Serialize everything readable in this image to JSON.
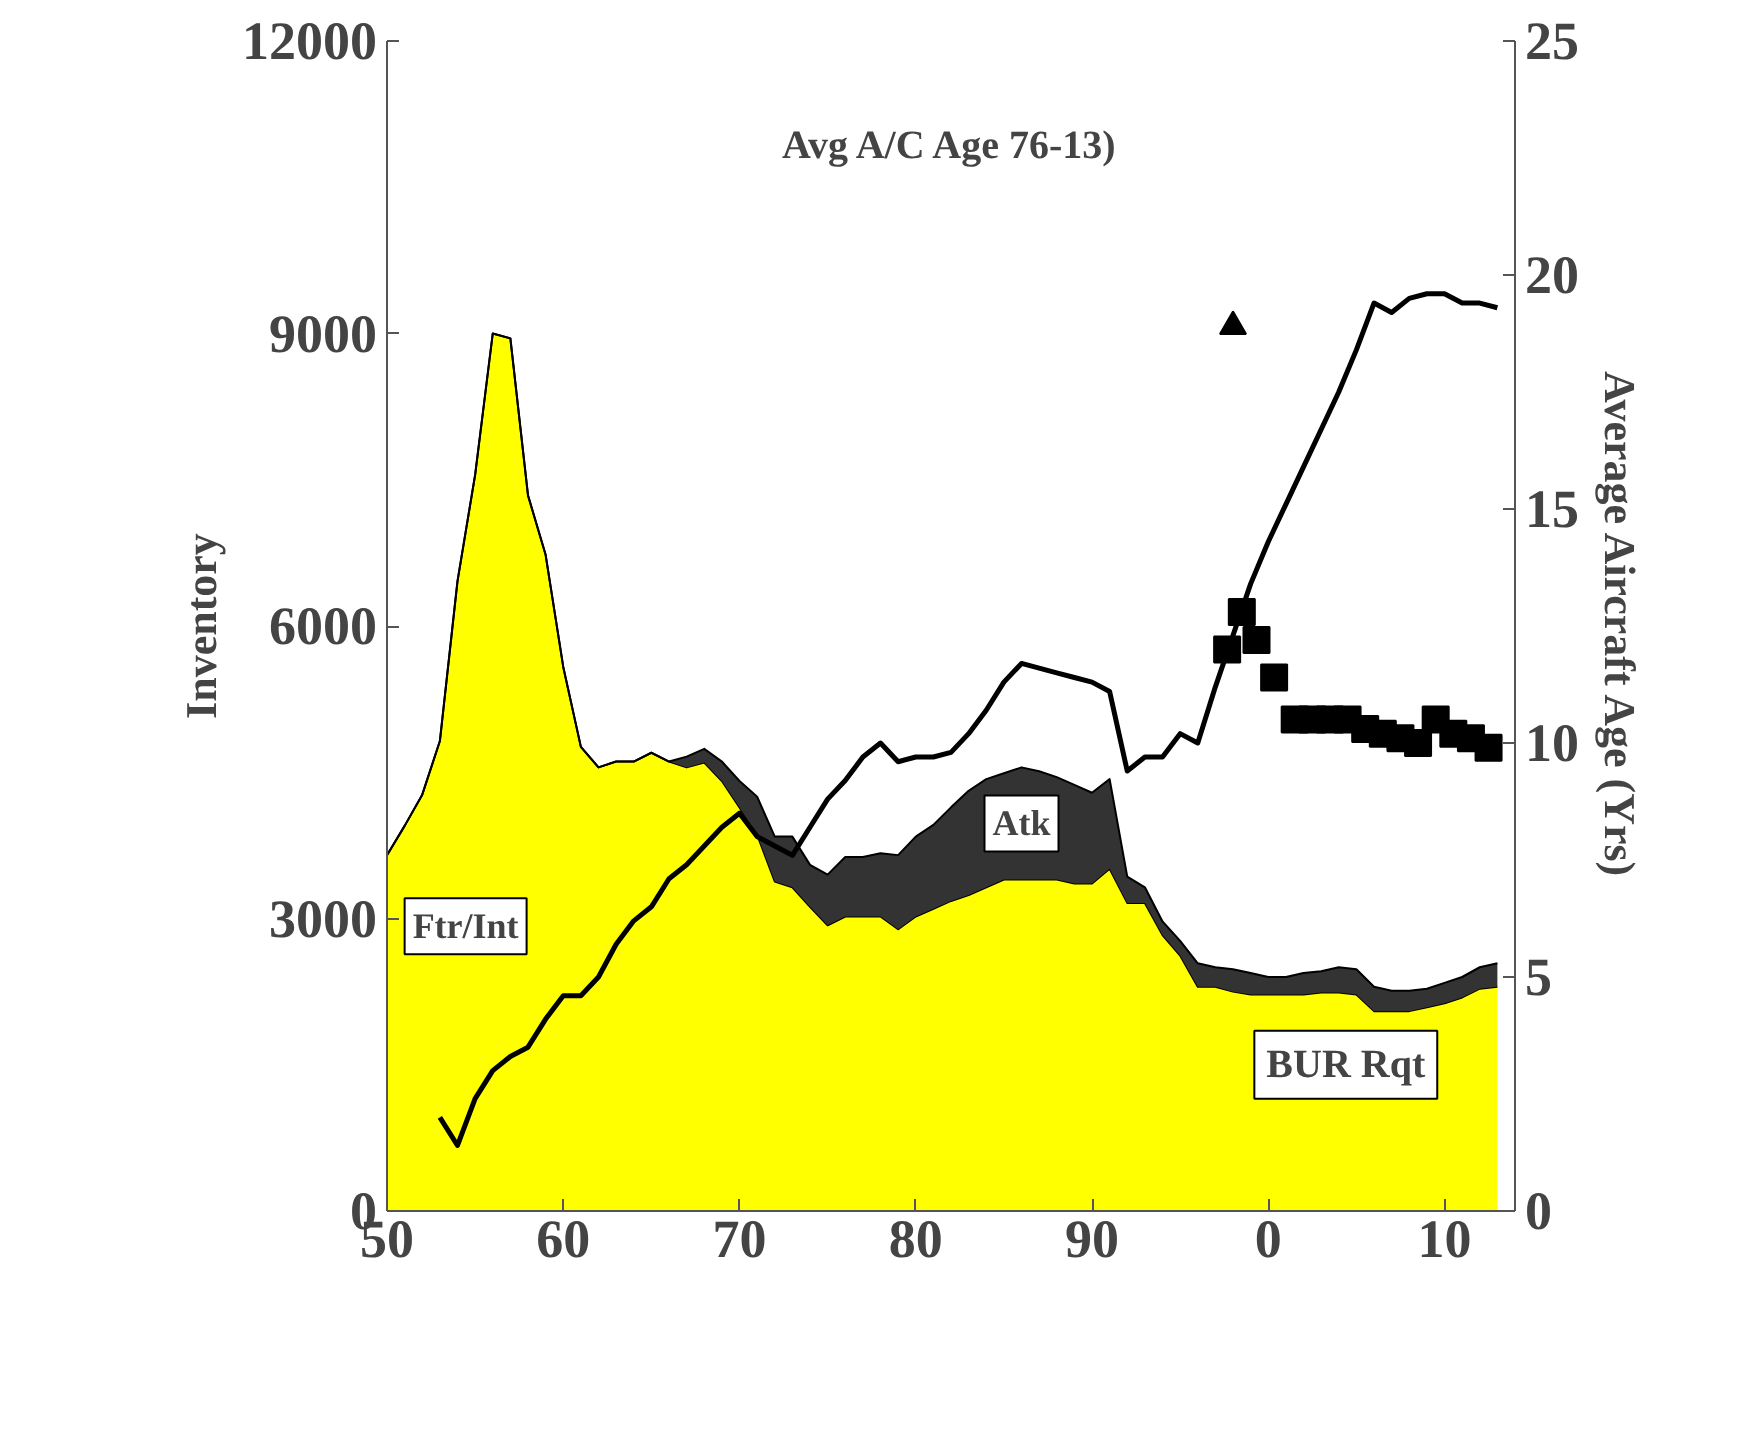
{
  "chart_data": {
    "type": "area",
    "stacked": true,
    "title": "Avg A/C Age 76-13)",
    "ylabel": "Inventory",
    "y2label": "Average Aircraft Age (Yrs)",
    "x": [
      "1950",
      "1951",
      "1952",
      "1953",
      "1954",
      "1955",
      "1956",
      "1957",
      "1958",
      "1959",
      "1960",
      "1961",
      "1962",
      "1963",
      "1964",
      "1965",
      "1966",
      "1967",
      "1968",
      "1969",
      "1970",
      "1971",
      "1972",
      "1973",
      "1974",
      "1975",
      "1976",
      "1977",
      "1978",
      "1979",
      "1980",
      "1981",
      "1982",
      "1983",
      "1984",
      "1985",
      "1986",
      "1987",
      "1988",
      "1989",
      "1990",
      "1991",
      "1992",
      "1993",
      "1994",
      "1995",
      "1996",
      "1997",
      "1998",
      "1999",
      "2000",
      "2001",
      "2002",
      "2003",
      "2004",
      "2005",
      "2006",
      "2007",
      "2008",
      "2009",
      "2010",
      "2011",
      "2012",
      "2013"
    ],
    "xlim": [
      "1950",
      "2014"
    ],
    "xticks": [
      {
        "value": "1950",
        "label": "50"
      },
      {
        "value": "1960",
        "label": "60"
      },
      {
        "value": "1970",
        "label": "70"
      },
      {
        "value": "1980",
        "label": "80"
      },
      {
        "value": "1990",
        "label": "90"
      },
      {
        "value": "2000",
        "label": "0"
      },
      {
        "value": "2010",
        "label": "10"
      }
    ],
    "ylim": [
      0,
      12000
    ],
    "yticks": [
      0,
      3000,
      6000,
      9000,
      12000
    ],
    "y2lim": [
      0,
      25
    ],
    "y2ticks": [
      0,
      5,
      10,
      15,
      20,
      25
    ],
    "grid": false,
    "series": [
      {
        "name": "Ftr/Int",
        "color": "#ffff00",
        "values": [
          3650,
          3950,
          4270,
          4820,
          6460,
          7550,
          9000,
          8950,
          7340,
          6730,
          5580,
          4760,
          4550,
          4610,
          4610,
          4700,
          4610,
          4550,
          4600,
          4410,
          4140,
          3860,
          3380,
          3320,
          3120,
          2930,
          3020,
          3020,
          3020,
          2890,
          3020,
          3100,
          3180,
          3240,
          3320,
          3400,
          3400,
          3400,
          3400,
          3360,
          3360,
          3510,
          3160,
          3160,
          2830,
          2620,
          2300,
          2300,
          2250,
          2220,
          2220,
          2220,
          2220,
          2240,
          2240,
          2220,
          2050,
          2050,
          2050,
          2090,
          2130,
          2190,
          2280,
          2300
        ]
      },
      {
        "name": "Atk",
        "color": "#333333",
        "values": [
          0,
          0,
          0,
          0,
          0,
          0,
          0,
          0,
          0,
          0,
          0,
          0,
          0,
          0,
          0,
          0,
          0,
          110,
          140,
          200,
          270,
          390,
          460,
          520,
          430,
          520,
          610,
          610,
          650,
          760,
          820,
          860,
          960,
          1070,
          1110,
          1090,
          1150,
          1110,
          1050,
          1010,
          930,
          920,
          270,
          160,
          140,
          150,
          240,
          200,
          230,
          220,
          180,
          180,
          220,
          220,
          260,
          260,
          250,
          210,
          210,
          190,
          210,
          210,
          220,
          240
        ]
      },
      {
        "type": "line",
        "axis": "y2",
        "color": "#000000",
        "x": [
          "1953",
          "1954",
          "1955",
          "1956",
          "1957",
          "1958",
          "1959",
          "1960",
          "1961",
          "1962",
          "1963",
          "1964",
          "1965",
          "1966",
          "1967",
          "1968",
          "1969",
          "1970",
          "1971",
          "1972",
          "1973",
          "1974",
          "1975",
          "1976",
          "1977",
          "1978",
          "1979",
          "1980",
          "1981",
          "1982",
          "1983",
          "1984",
          "1985",
          "1986",
          "1987",
          "1988",
          "1989",
          "1990",
          "1991",
          "1992",
          "1993",
          "1994",
          "1995",
          "1996",
          "1997",
          "1998",
          "1999",
          "2000",
          "2001",
          "2002",
          "2003",
          "2004",
          "2005",
          "2006",
          "2007",
          "2008",
          "2009",
          "2010",
          "2011",
          "2012",
          "2013"
        ],
        "values": [
          2.0,
          1.4,
          2.4,
          3.0,
          3.3,
          3.5,
          4.1,
          4.6,
          4.6,
          5.0,
          5.7,
          6.2,
          6.5,
          7.1,
          7.4,
          7.8,
          8.2,
          8.5,
          8.0,
          7.8,
          7.6,
          8.2,
          8.8,
          9.2,
          9.7,
          10.0,
          9.6,
          9.7,
          9.7,
          9.8,
          10.2,
          10.7,
          11.3,
          11.7,
          11.6,
          11.5,
          11.4,
          11.3,
          11.1,
          9.4,
          9.7,
          9.7,
          10.2,
          10.0,
          11.2,
          12.3,
          13.4,
          14.3,
          15.1,
          15.9,
          16.7,
          17.5,
          18.4,
          19.4,
          19.2,
          19.5,
          19.6,
          19.6,
          19.4,
          19.4,
          19.3
        ]
      },
      {
        "type": "scatter",
        "axis": "y2",
        "marker": "square",
        "color": "#000000",
        "x": [
          "1997-09",
          "1998-07",
          "1999-05",
          "2000-05",
          "2001-07",
          "2002-07",
          "2003-07",
          "2004-07",
          "2005-07",
          "2006-07",
          "2007-07",
          "2008-07",
          "2009-07",
          "2010-07",
          "2011-07",
          "2012-07"
        ],
        "values": [
          12.0,
          12.8,
          12.2,
          11.4,
          10.5,
          10.5,
          10.5,
          10.5,
          10.3,
          10.2,
          10.1,
          10.0,
          10.5,
          10.2,
          10.1,
          9.9
        ]
      },
      {
        "type": "scatter",
        "axis": "y2",
        "marker": "triangle",
        "color": "#000000",
        "x": [
          "1998"
        ],
        "values": [
          18.9
        ]
      }
    ],
    "annotations": [
      "BUR Rqt"
    ]
  }
}
